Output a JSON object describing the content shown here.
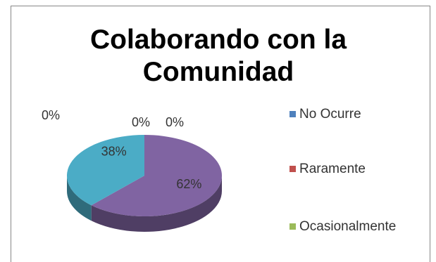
{
  "chart_data": {
    "type": "pie",
    "title": "Colaborando con la Comunidad",
    "categories": [
      "No Ocurre",
      "Raramente",
      "Ocasionalmente",
      null,
      null
    ],
    "values": [
      0,
      0,
      0,
      62,
      38
    ],
    "value_labels": [
      "0%",
      "0%",
      "0%",
      "62%",
      "38%"
    ],
    "colors": [
      "#4f81bd",
      "#c0504d",
      "#9bbb59",
      "#8064a2",
      "#4bacc6"
    ],
    "legend": "right"
  }
}
